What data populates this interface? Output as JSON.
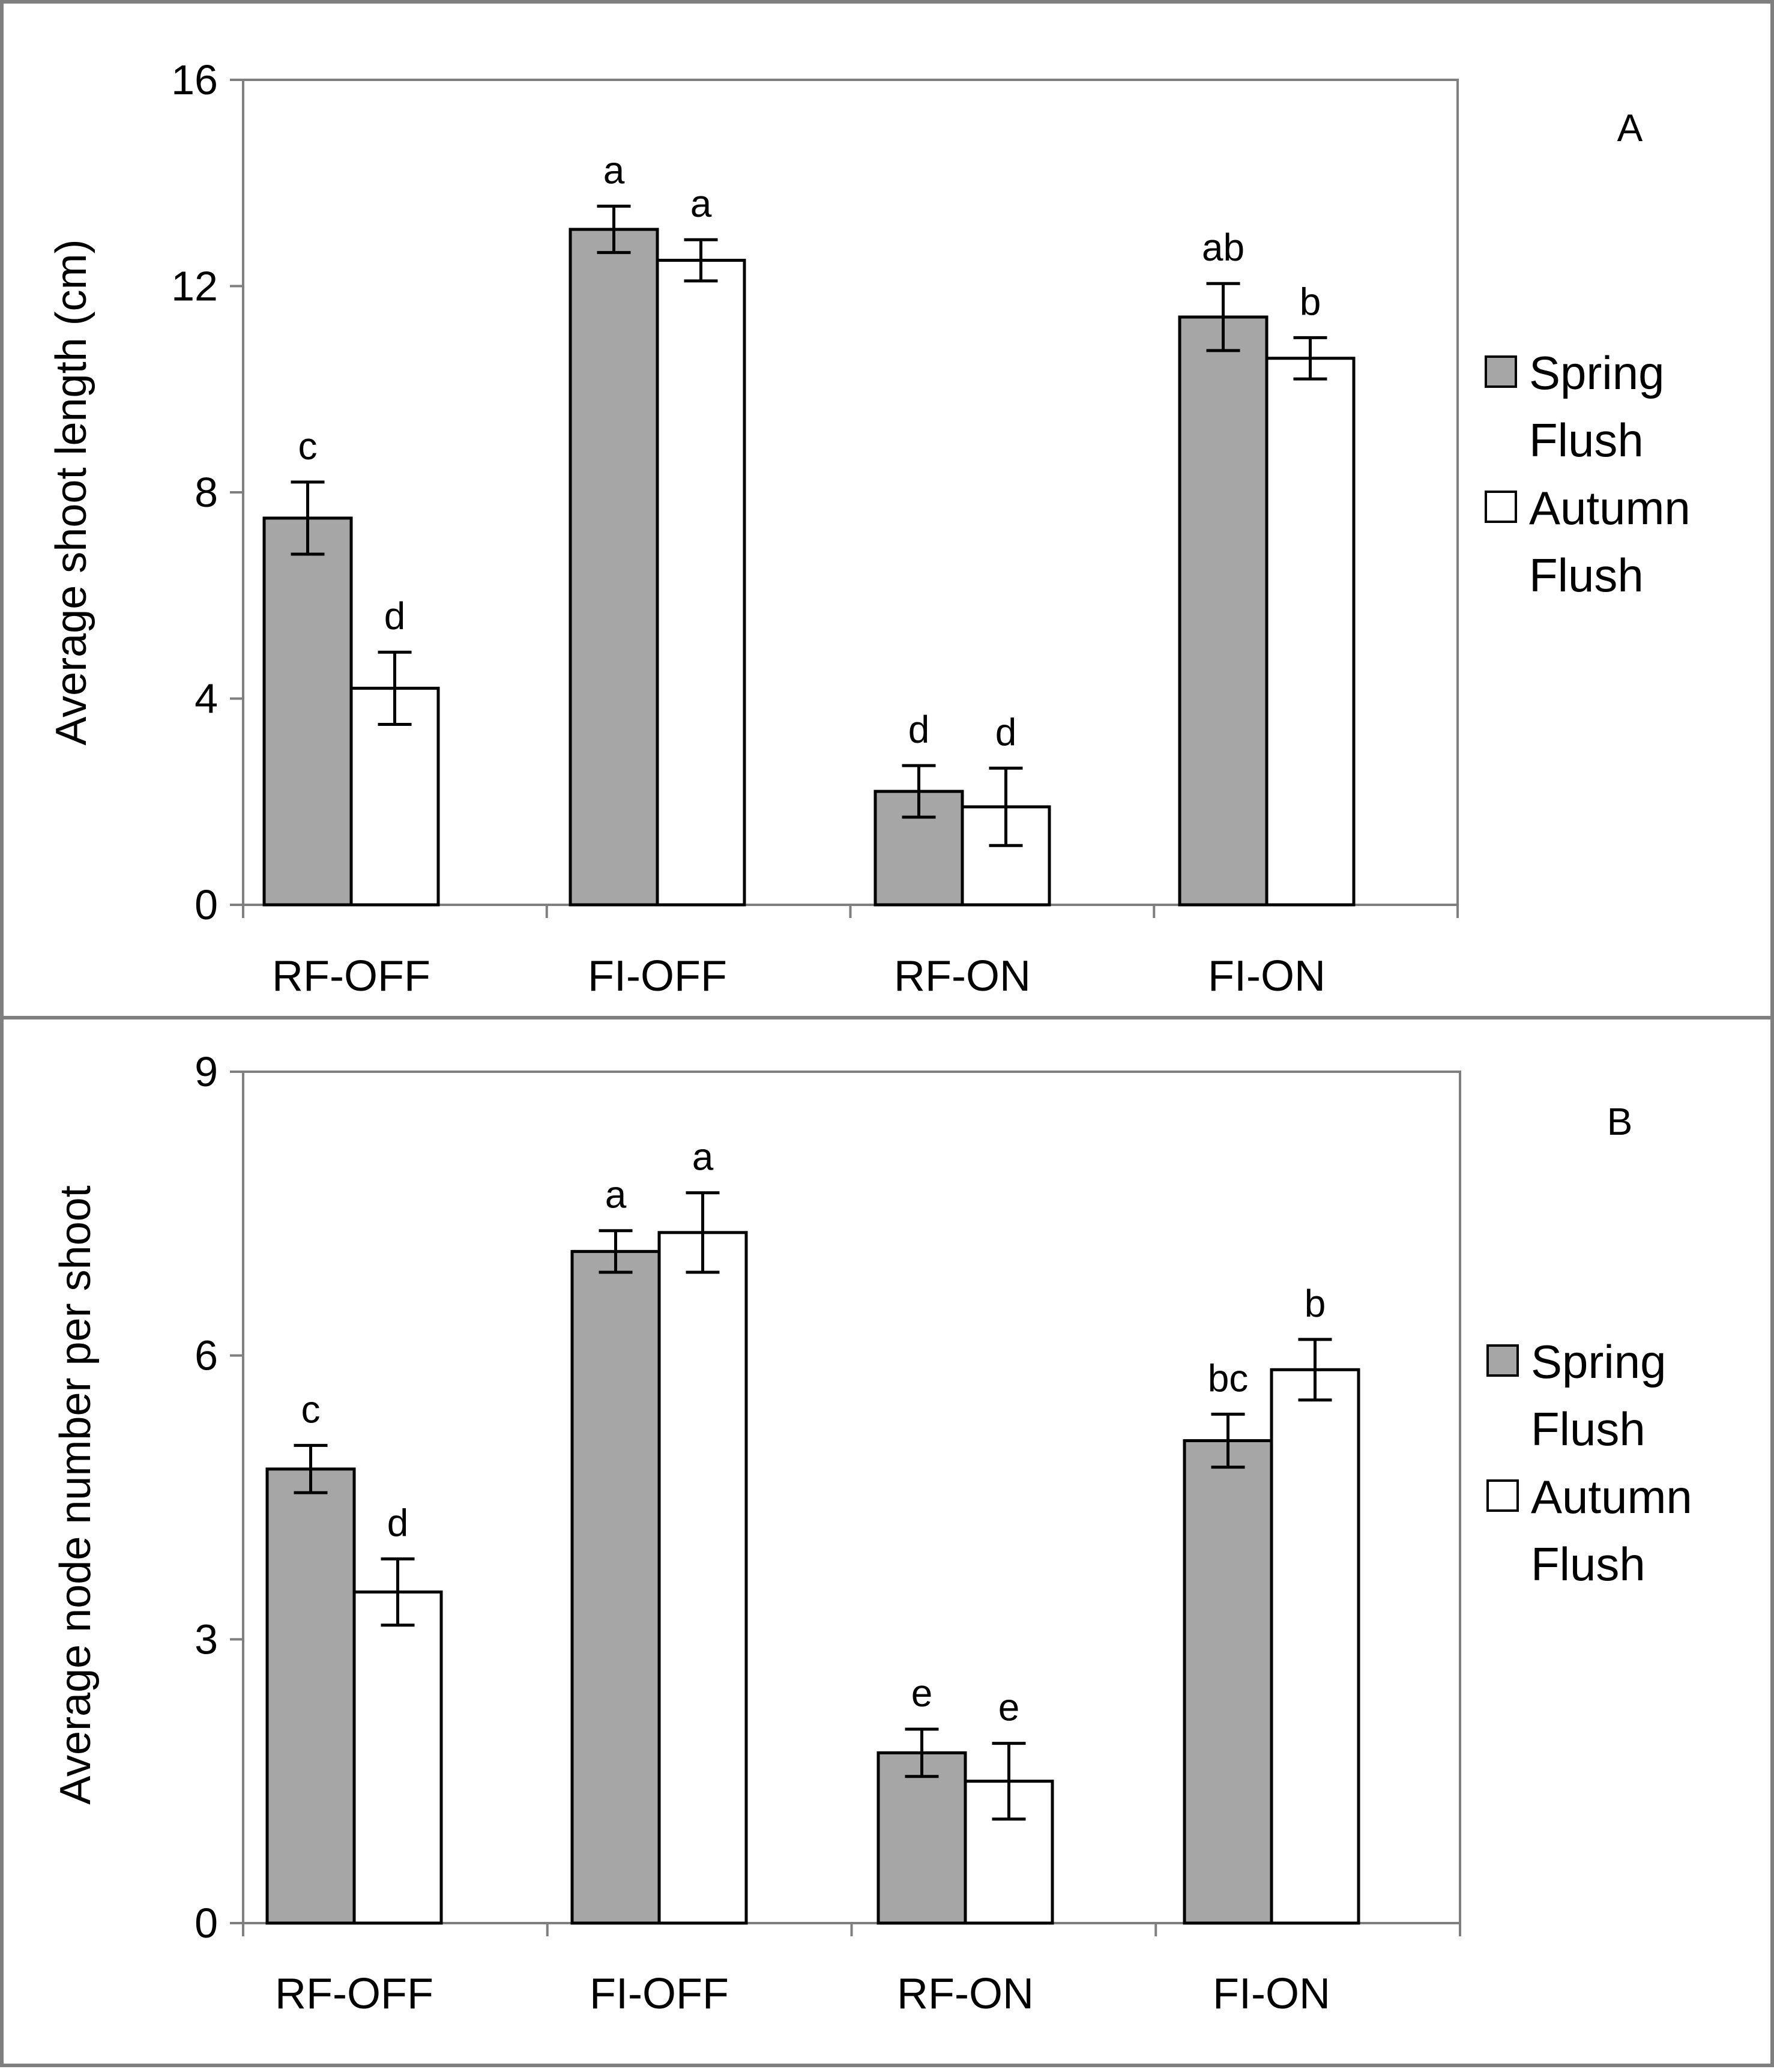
{
  "series_colors": {
    "spring": "#a6a6a6",
    "autumn": "#ffffff"
  },
  "legend": [
    {
      "line1": "Spring",
      "line2": "Flush"
    },
    {
      "line1": "Autumn",
      "line2": "Flush"
    }
  ],
  "chart_data": [
    {
      "type": "bar",
      "panel": "A",
      "title": "",
      "ylabel": "Average shoot length (cm)",
      "xlabel": "",
      "ylim": [
        0,
        16
      ],
      "yticks": [
        0,
        4,
        8,
        12,
        16
      ],
      "categories": [
        "RF-OFF",
        "FI-OFF",
        "RF-ON",
        "FI-ON"
      ],
      "series": [
        {
          "name": "Spring Flush",
          "values": [
            7.5,
            13.1,
            2.2,
            11.4
          ],
          "errors": [
            0.7,
            0.45,
            0.5,
            0.65
          ],
          "letters": [
            "c",
            "a",
            "d",
            "ab"
          ]
        },
        {
          "name": "Autumn Flush",
          "values": [
            4.2,
            12.5,
            1.9,
            10.6
          ],
          "errors": [
            0.7,
            0.4,
            0.75,
            0.4
          ],
          "letters": [
            "d",
            "a",
            "d",
            "b"
          ]
        }
      ]
    },
    {
      "type": "bar",
      "panel": "B",
      "title": "",
      "ylabel": "Average node number per shoot",
      "xlabel": "",
      "ylim": [
        0,
        9
      ],
      "yticks": [
        0,
        3,
        6,
        9
      ],
      "categories": [
        "RF-OFF",
        "FI-OFF",
        "RF-ON",
        "FI-ON"
      ],
      "series": [
        {
          "name": "Spring Flush",
          "values": [
            4.8,
            7.1,
            1.8,
            5.1
          ],
          "errors": [
            0.25,
            0.22,
            0.25,
            0.28
          ],
          "letters": [
            "c",
            "a",
            "e",
            "bc"
          ]
        },
        {
          "name": "Autumn Flush",
          "values": [
            3.5,
            7.3,
            1.5,
            5.85
          ],
          "errors": [
            0.35,
            0.42,
            0.4,
            0.32
          ],
          "letters": [
            "d",
            "a",
            "e",
            "b"
          ]
        }
      ]
    }
  ]
}
